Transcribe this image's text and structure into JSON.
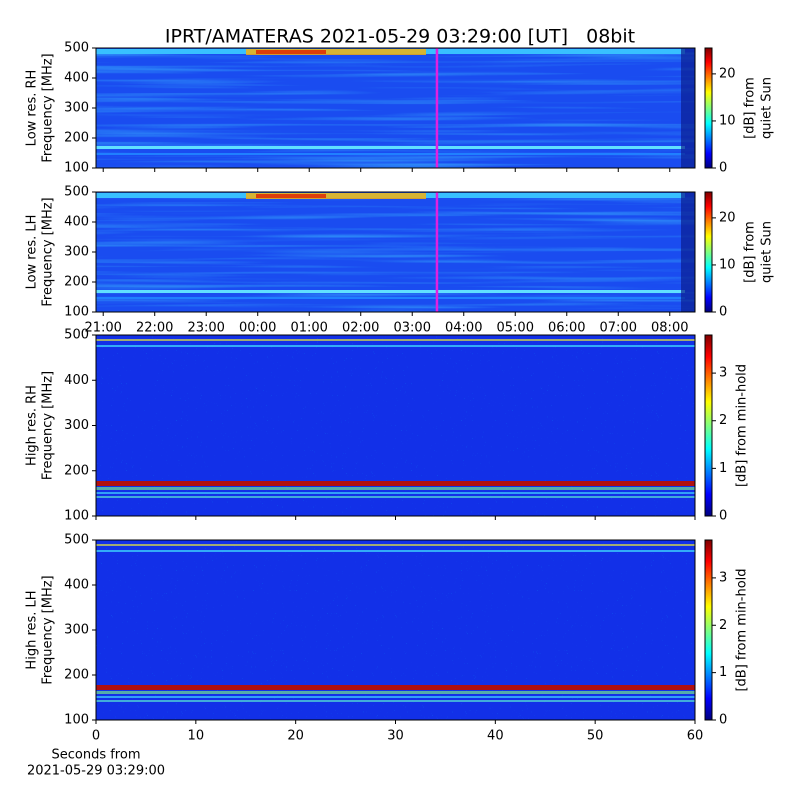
{
  "chart_data": [
    {
      "type": "heatmap",
      "title": "IPRT/AMATERAS 2021-05-29 03:29:00 [UT]   08bit",
      "ylabel": [
        "Low res. RH",
        "Frequency [MHz]"
      ],
      "xlim": [
        20.86,
        32.49
      ],
      "xticks": [
        21,
        22,
        23,
        24,
        25,
        26,
        27,
        28,
        29,
        30,
        31,
        32
      ],
      "ylim": [
        100,
        500
      ],
      "yticks": [
        100,
        200,
        300,
        400,
        500
      ],
      "marker": {
        "x": 27.48,
        "color": "#e020e0"
      },
      "colorbar": {
        "label": [
          "[dB] from",
          "quiet Sun"
        ],
        "lim": [
          0,
          25.5
        ],
        "ticks": [
          0,
          10,
          20
        ]
      }
    },
    {
      "type": "heatmap",
      "ylabel": [
        "Low res. LH",
        "Frequency [MHz]"
      ],
      "xlim": [
        20.86,
        32.49
      ],
      "xticks": [
        {
          "value": 21,
          "label": "21:00"
        },
        {
          "value": 22,
          "label": "22:00"
        },
        {
          "value": 23,
          "label": "23:00"
        },
        {
          "value": 24,
          "label": "00:00"
        },
        {
          "value": 25,
          "label": "01:00"
        },
        {
          "value": 26,
          "label": "02:00"
        },
        {
          "value": 27,
          "label": "03:00"
        },
        {
          "value": 28,
          "label": "04:00"
        },
        {
          "value": 29,
          "label": "05:00"
        },
        {
          "value": 30,
          "label": "06:00"
        },
        {
          "value": 31,
          "label": "07:00"
        },
        {
          "value": 32,
          "label": "08:00"
        }
      ],
      "ylim": [
        100,
        500
      ],
      "yticks": [
        100,
        200,
        300,
        400,
        500
      ],
      "marker": {
        "x": 27.48,
        "color": "#e020e0"
      },
      "colorbar": {
        "label": [
          "[dB] from",
          "quiet Sun"
        ],
        "lim": [
          0,
          25.5
        ],
        "ticks": [
          0,
          10,
          20
        ]
      }
    },
    {
      "type": "heatmap",
      "ylabel": [
        "High res. RH",
        "Frequency [MHz]"
      ],
      "xlim": [
        0,
        60
      ],
      "xticks": [
        0,
        10,
        20,
        30,
        40,
        50,
        60
      ],
      "ylim": [
        100,
        500
      ],
      "yticks": [
        100,
        200,
        300,
        400,
        500
      ],
      "colorbar": {
        "label": [
          "[dB] from min-hold"
        ],
        "lim": [
          0,
          3.8
        ],
        "ticks": [
          0,
          1,
          2,
          3
        ]
      }
    },
    {
      "type": "heatmap",
      "ylabel": [
        "High res. LH",
        "Frequency [MHz]"
      ],
      "xlim": [
        0,
        60
      ],
      "xticks": [
        0,
        10,
        20,
        30,
        40,
        50,
        60
      ],
      "xlabel": [
        "Seconds from",
        "2021-05-29 03:29:00"
      ],
      "ylim": [
        100,
        500
      ],
      "yticks": [
        100,
        200,
        300,
        400,
        500
      ],
      "colorbar": {
        "label": [
          "[dB] from min-hold"
        ],
        "lim": [
          0,
          3.8
        ],
        "ticks": [
          0,
          1,
          2,
          3
        ]
      }
    }
  ]
}
